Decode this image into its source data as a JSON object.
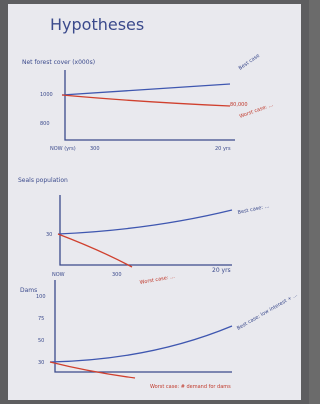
{
  "header": {
    "title": "Hypotheses"
  },
  "sketches": [
    {
      "label": "Net forest cover (x000s)",
      "y_labels": [
        "1000",
        "800"
      ],
      "x_labels": [
        "NOW (yrs)",
        "300",
        "20 yrs"
      ],
      "annotations": [
        "Best case",
        "Worst case: ...",
        "80,000"
      ]
    },
    {
      "label": "Seals population",
      "y_labels": [
        "30"
      ],
      "x_labels": [
        "NOW",
        "300",
        "20 yrs"
      ],
      "annotations": [
        "Best case: ...",
        "Worst case: ..."
      ]
    },
    {
      "label": "Dams",
      "y_labels": [
        "100",
        "75",
        "50",
        "30"
      ],
      "x_labels": [],
      "annotations": [
        "Best case: low interest + ...",
        "Worst case: # demand for dams"
      ]
    }
  ]
}
